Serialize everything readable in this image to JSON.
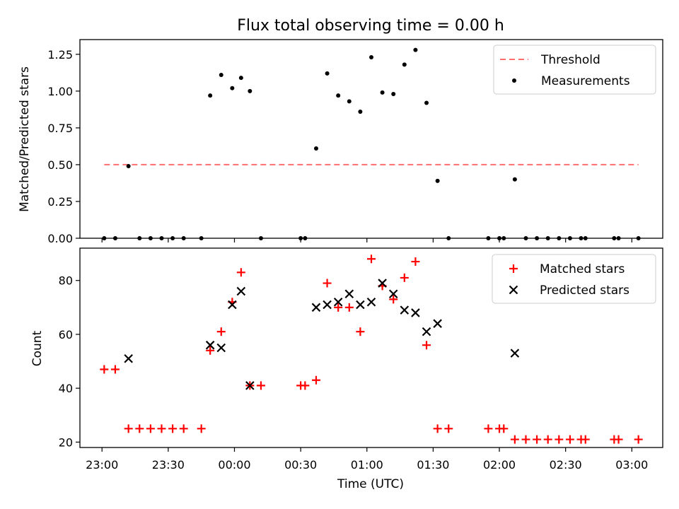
{
  "figure": {
    "title": "Flux total observing time = 0.00 h"
  },
  "colors": {
    "threshold": "#ff6f6f",
    "measurements": "#000000",
    "matched": "#ff0000",
    "predicted": "#000000"
  },
  "chart_data": [
    {
      "type": "scatter",
      "title": "Flux total observing time = 0.00 h",
      "xlabel": "",
      "ylabel": "Matched/Predicted stars",
      "ylim": [
        0,
        1.35
      ],
      "yticks": [
        0.0,
        0.25,
        0.5,
        0.75,
        1.0,
        1.25
      ],
      "ytick_labels": [
        "0.00",
        "0.25",
        "0.50",
        "0.75",
        "1.00",
        "1.25"
      ],
      "legend_position": "top-right",
      "series": [
        {
          "name": "Threshold",
          "kind": "line",
          "style": "dashed",
          "x": [
            "23:01",
            "03:03"
          ],
          "y": [
            0.5,
            0.5
          ]
        },
        {
          "name": "Measurements",
          "kind": "scatter",
          "marker": "dot",
          "x": [
            "23:01",
            "23:06",
            "23:12",
            "23:17",
            "23:22",
            "23:27",
            "23:32",
            "23:37",
            "23:45",
            "23:49",
            "23:54",
            "23:59",
            "00:03",
            "00:07",
            "00:12",
            "00:30",
            "00:32",
            "00:37",
            "00:42",
            "00:47",
            "00:52",
            "00:57",
            "01:02",
            "01:07",
            "01:12",
            "01:17",
            "01:22",
            "01:27",
            "01:32",
            "01:37",
            "01:55",
            "02:00",
            "02:02",
            "02:07",
            "02:12",
            "02:17",
            "02:22",
            "02:27",
            "02:32",
            "02:37",
            "02:39",
            "02:52",
            "02:54",
            "03:03"
          ],
          "y": [
            0,
            0,
            0.49,
            0,
            0,
            0,
            0,
            0,
            0,
            0.97,
            1.11,
            1.02,
            1.09,
            1.0,
            0,
            0,
            0,
            0.61,
            1.12,
            0.97,
            0.93,
            0.86,
            1.23,
            0.99,
            0.98,
            1.18,
            1.28,
            0.92,
            0.39,
            0,
            0,
            0,
            0,
            0.4,
            0,
            0,
            0,
            0,
            0,
            0,
            0,
            0,
            0,
            0
          ]
        }
      ]
    },
    {
      "type": "scatter",
      "title": "",
      "xlabel": "Time (UTC)",
      "ylabel": "Count",
      "ylim": [
        18,
        92
      ],
      "yticks": [
        20,
        40,
        60,
        80
      ],
      "ytick_labels": [
        "20",
        "40",
        "60",
        "80"
      ],
      "x_tick_labels": [
        "23:00",
        "23:30",
        "00:00",
        "00:30",
        "01:00",
        "01:30",
        "02:00",
        "02:30",
        "03:00"
      ],
      "legend_position": "top-right",
      "series": [
        {
          "name": "Matched stars",
          "kind": "scatter",
          "marker": "plus",
          "x": [
            "23:01",
            "23:06",
            "23:12",
            "23:17",
            "23:22",
            "23:27",
            "23:32",
            "23:37",
            "23:45",
            "23:49",
            "23:54",
            "23:59",
            "00:03",
            "00:07",
            "00:12",
            "00:30",
            "00:32",
            "00:37",
            "00:42",
            "00:47",
            "00:52",
            "00:57",
            "01:02",
            "01:07",
            "01:12",
            "01:17",
            "01:22",
            "01:27",
            "01:32",
            "01:37",
            "01:55",
            "02:00",
            "02:02",
            "02:07",
            "02:12",
            "02:17",
            "02:22",
            "02:27",
            "02:32",
            "02:37",
            "02:39",
            "02:52",
            "02:54",
            "03:03"
          ],
          "y": [
            47,
            47,
            25,
            25,
            25,
            25,
            25,
            25,
            25,
            54,
            61,
            72,
            83,
            41,
            41,
            41,
            41,
            43,
            79,
            70,
            70,
            61,
            88,
            78,
            73,
            81,
            87,
            56,
            25,
            25,
            25,
            25,
            25,
            21,
            21,
            21,
            21,
            21,
            21,
            21,
            21,
            21,
            21,
            21
          ]
        },
        {
          "name": "Predicted stars",
          "kind": "scatter",
          "marker": "x",
          "x": [
            "23:12",
            "23:49",
            "23:54",
            "23:59",
            "00:03",
            "00:07",
            "00:37",
            "00:42",
            "00:47",
            "00:52",
            "00:57",
            "01:02",
            "01:07",
            "01:12",
            "01:17",
            "01:22",
            "01:27",
            "01:32",
            "02:07"
          ],
          "y": [
            51,
            56,
            55,
            71,
            76,
            41,
            70,
            71,
            72,
            75,
            71,
            72,
            79,
            75,
            69,
            68,
            61,
            64,
            53
          ]
        }
      ]
    }
  ]
}
